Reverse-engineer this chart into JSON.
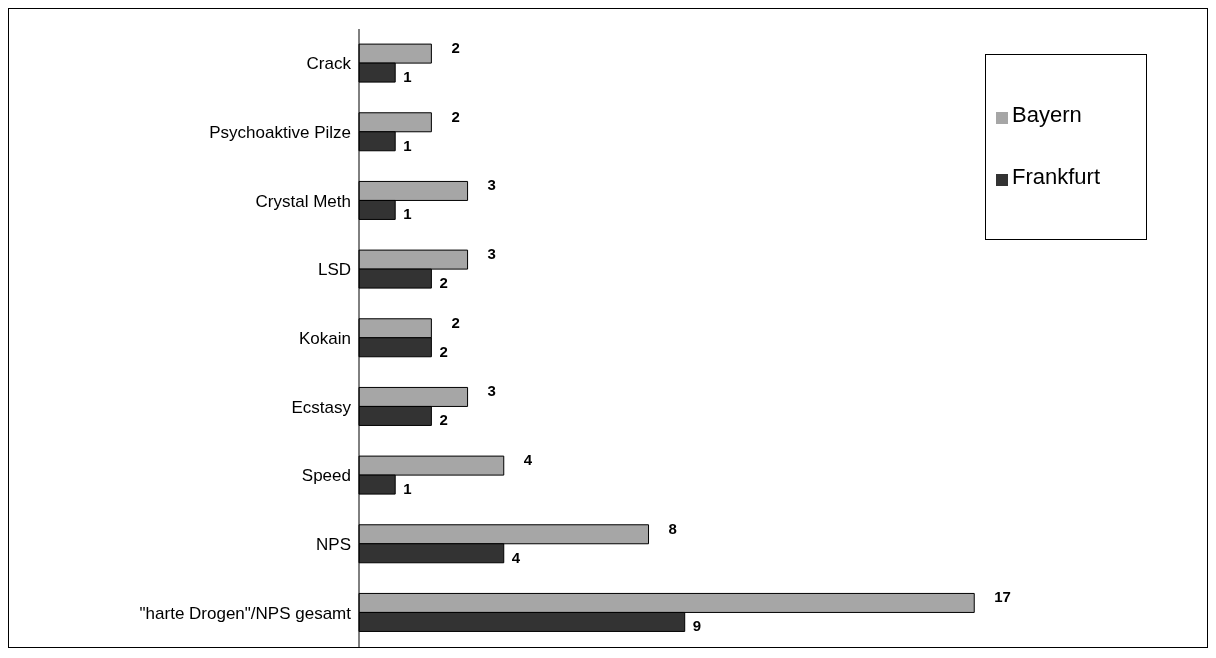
{
  "chart_data": {
    "type": "bar",
    "orientation": "horizontal",
    "categories": [
      "Crack",
      "Psychoaktive Pilze",
      "Crystal Meth",
      "LSD",
      "Kokain",
      "Ecstasy",
      "Speed",
      "NPS",
      "\"harte Drogen\"/NPS gesamt"
    ],
    "series": [
      {
        "name": "Bayern",
        "color": "#a6a6a6",
        "values": [
          2,
          2,
          3,
          3,
          2,
          3,
          4,
          8,
          17
        ]
      },
      {
        "name": "Frankfurt",
        "color": "#333333",
        "values": [
          1,
          1,
          1,
          2,
          2,
          2,
          1,
          4,
          9
        ]
      }
    ],
    "data_labels": true,
    "legend": "top right"
  }
}
